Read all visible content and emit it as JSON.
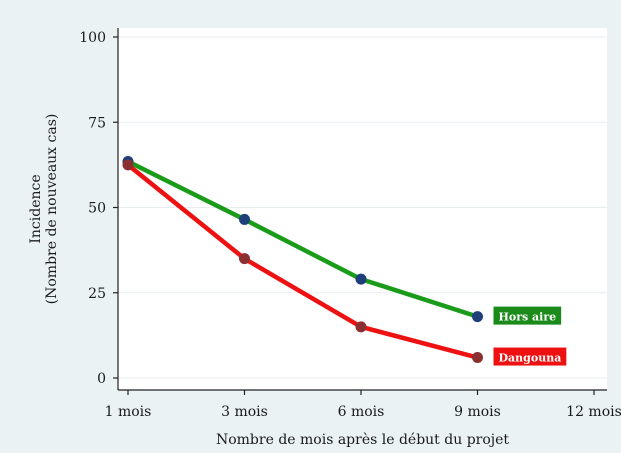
{
  "chart_data": {
    "type": "line",
    "xlabel": "Nombre de mois après le début du projet",
    "ylabel_lines": [
      "Incidence",
      "(Nombre de nouveaux cas)"
    ],
    "x_ticks": [
      {
        "value": 0,
        "label": "1 mois"
      },
      {
        "value": 1,
        "label": "3 mois"
      },
      {
        "value": 2,
        "label": "6 mois"
      },
      {
        "value": 3,
        "label": "9 mois"
      },
      {
        "value": 4,
        "label": "12 mois"
      }
    ],
    "y_ticks": [
      0,
      25,
      50,
      75,
      100
    ],
    "xlim": [
      0,
      4
    ],
    "ylim": [
      0,
      100
    ],
    "grid": true,
    "series": [
      {
        "name": "Hors aire",
        "line_color": "#1a9c1a",
        "marker_color": "#1e3f7a",
        "label_bg": "#1a8a1a",
        "x": [
          0,
          1,
          2,
          3
        ],
        "values": [
          63.5,
          46.5,
          29,
          18
        ]
      },
      {
        "name": "Dangouna",
        "line_color": "#ee1111",
        "marker_color": "#8a3030",
        "label_bg": "#ee1111",
        "x": [
          0,
          1,
          2,
          3
        ],
        "values": [
          62.5,
          35,
          15,
          6
        ]
      }
    ]
  },
  "colors": {
    "background": "#eaf2f3",
    "plot_area": "#ffffff",
    "grid": "#e8eef0"
  }
}
